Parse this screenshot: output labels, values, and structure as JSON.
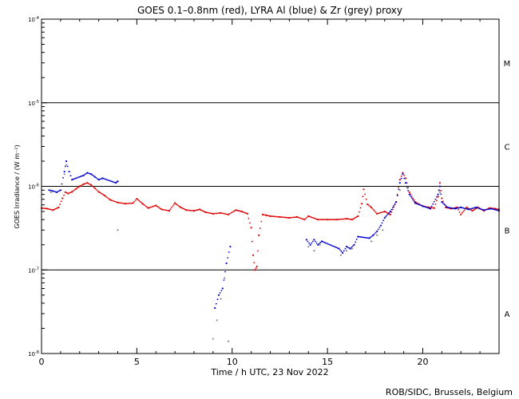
{
  "chart_data": {
    "type": "scatter",
    "title": "GOES 0.1–0.8nm (red), LYRA Al (blue) & Zr (grey) proxy",
    "xlabel": "Time / h UTC, 23 Nov 2022",
    "ylabel": "GOES Irradiance / (W m⁻²)",
    "xlim": [
      0,
      24
    ],
    "ylim": [
      1e-08,
      0.0001
    ],
    "yscale": "log",
    "x_ticks": [
      0,
      5,
      10,
      15,
      20
    ],
    "x_tick_labels": [
      "0",
      "5",
      "10",
      "15",
      "20"
    ],
    "y_ticks": [
      1e-08,
      1e-07,
      1e-06,
      1e-05,
      0.0001
    ],
    "y_tick_labels": [
      {
        "base": "10",
        "exp": "-8"
      },
      {
        "base": "10",
        "exp": "-7"
      },
      {
        "base": "10",
        "exp": "-6"
      },
      {
        "base": "10",
        "exp": "-5"
      },
      {
        "base": "10",
        "exp": "-4"
      }
    ],
    "flare_class_lines": [
      1e-07,
      1e-06,
      1e-05
    ],
    "flare_classes": [
      {
        "label": "A",
        "y": 3e-08
      },
      {
        "label": "B",
        "y": 3e-07
      },
      {
        "label": "C",
        "y": 3e-06
      },
      {
        "label": "M",
        "y": 3e-05
      }
    ],
    "series": [
      {
        "name": "GOES 0.1-0.8nm",
        "color": "#dd0000",
        "x": [
          0,
          0.3,
          0.6,
          0.9,
          1.1,
          1.25,
          1.4,
          1.6,
          1.8,
          2.0,
          2.2,
          2.4,
          2.6,
          2.8,
          3.0,
          3.3,
          3.6,
          4.0,
          4.4,
          4.8,
          5.0,
          5.3,
          5.6,
          6.0,
          6.3,
          6.7,
          7.0,
          7.3,
          7.6,
          8.0,
          8.3,
          8.6,
          9.0,
          9.4,
          9.8,
          10.2,
          10.5,
          10.8,
          11.0,
          11.1,
          11.2,
          11.3,
          11.4,
          11.6,
          11.8,
          12.0,
          12.5,
          13.0,
          13.4,
          13.8,
          14.0,
          14.5,
          15.0,
          15.5,
          16.0,
          16.3,
          16.6,
          16.8,
          16.9,
          17.1,
          17.3,
          17.6,
          18.0,
          18.3,
          18.6,
          18.8,
          18.95,
          19.1,
          19.3,
          19.6,
          20.0,
          20.3,
          20.6,
          20.8,
          20.9,
          21.0,
          21.2,
          21.5,
          21.8,
          22.0,
          22.3,
          22.6,
          22.9,
          23.2,
          23.5,
          23.8,
          24.0
        ],
        "y": [
          5.5e-07,
          5.4e-07,
          5.2e-07,
          5.6e-07,
          7.2e-07,
          8.5e-07,
          8.2e-07,
          8.6e-07,
          9.3e-07,
          1e-06,
          1.06e-06,
          1.1e-06,
          1.04e-06,
          9.5e-07,
          8.6e-07,
          7.8e-07,
          6.9e-07,
          6.4e-07,
          6.2e-07,
          6.3e-07,
          7.1e-07,
          6.2e-07,
          5.5e-07,
          5.9e-07,
          5.3e-07,
          5.1e-07,
          6.3e-07,
          5.6e-07,
          5.2e-07,
          5.1e-07,
          5.3e-07,
          4.9e-07,
          4.7e-07,
          4.8e-07,
          4.6e-07,
          5.2e-07,
          5e-07,
          4.7e-07,
          3.2e-07,
          1.5e-07,
          1e-07,
          1.1e-07,
          2.6e-07,
          4.6e-07,
          4.5e-07,
          4.4e-07,
          4.3e-07,
          4.2e-07,
          4.3e-07,
          4e-07,
          4.4e-07,
          4e-07,
          4e-07,
          4e-07,
          4.1e-07,
          4e-07,
          4.4e-07,
          6.2e-07,
          9.2e-07,
          6.1e-07,
          5.6e-07,
          4.7e-07,
          5e-07,
          4.6e-07,
          6.5e-07,
          1.2e-06,
          1.45e-06,
          1.25e-06,
          8.5e-07,
          6.5e-07,
          5.8e-07,
          5.6e-07,
          5.5e-07,
          7.5e-07,
          1.1e-06,
          7.2e-07,
          5.6e-07,
          5.4e-07,
          5.6e-07,
          4.6e-07,
          5.6e-07,
          5.1e-07,
          5.6e-07,
          5.1e-07,
          5.5e-07,
          5.4e-07,
          5.3e-07
        ]
      },
      {
        "name": "LYRA Al proxy",
        "color": "#0000cc",
        "x": [
          0.4,
          0.6,
          0.8,
          1.0,
          1.2,
          1.3,
          1.45,
          1.6,
          2.2,
          2.4,
          2.6,
          2.8,
          3.0,
          3.2,
          3.9,
          4.0,
          9.1,
          9.3,
          9.5,
          9.7,
          9.9,
          13.9,
          14.1,
          14.3,
          14.5,
          14.7,
          15.6,
          15.8,
          16.0,
          16.2,
          16.4,
          16.6,
          17.2,
          17.4,
          17.6,
          17.8,
          18.0,
          18.3,
          18.6,
          18.8,
          18.95,
          19.1,
          19.3,
          19.6,
          20.0,
          20.4,
          20.8,
          20.9,
          21.0,
          21.3,
          21.7,
          22.0,
          22.4,
          22.8,
          23.2,
          23.6,
          24.0
        ],
        "y": [
          9e-07,
          8.8e-07,
          8.5e-07,
          9e-07,
          1.5e-06,
          2e-06,
          1.5e-06,
          1.2e-06,
          1.35e-06,
          1.45e-06,
          1.4e-06,
          1.3e-06,
          1.2e-06,
          1.25e-06,
          1.1e-06,
          1.15e-06,
          3.5e-08,
          5e-08,
          6e-08,
          1.2e-07,
          1.9e-07,
          2.3e-07,
          2e-07,
          2.3e-07,
          2e-07,
          2.2e-07,
          1.8e-07,
          1.6e-07,
          1.9e-07,
          1.8e-07,
          2e-07,
          2.5e-07,
          2.4e-07,
          2.6e-07,
          2.9e-07,
          3.4e-07,
          4.2e-07,
          5e-07,
          6.5e-07,
          1.1e-06,
          1.4e-06,
          1.1e-06,
          8e-07,
          6.3e-07,
          5.8e-07,
          5.4e-07,
          8e-07,
          1e-06,
          6.5e-07,
          5.6e-07,
          5.4e-07,
          5.6e-07,
          5.3e-07,
          5.6e-07,
          5.2e-07,
          5.4e-07,
          5.1e-07
        ]
      },
      {
        "name": "LYRA Zr proxy",
        "color": "#888888",
        "x": [
          0.5,
          1.2,
          1.3,
          4.0,
          9.0,
          9.2,
          9.4,
          9.6,
          9.8,
          14.0,
          14.3,
          14.6,
          15.7,
          16.0,
          16.3,
          17.3,
          17.6,
          17.9,
          18.8,
          19.2,
          20.9
        ],
        "y": [
          8.5e-07,
          1.4e-06,
          1.8e-06,
          3e-07,
          1.5e-08,
          2.5e-08,
          4.5e-08,
          8e-08,
          1.4e-08,
          1.9e-07,
          1.7e-07,
          2e-07,
          1.5e-07,
          1.7e-07,
          1.8e-07,
          2.2e-07,
          2.6e-07,
          3e-07,
          9e-07,
          9.5e-07,
          8.5e-07
        ]
      }
    ],
    "credit": "ROB/SIDC, Brussels, Belgium"
  }
}
